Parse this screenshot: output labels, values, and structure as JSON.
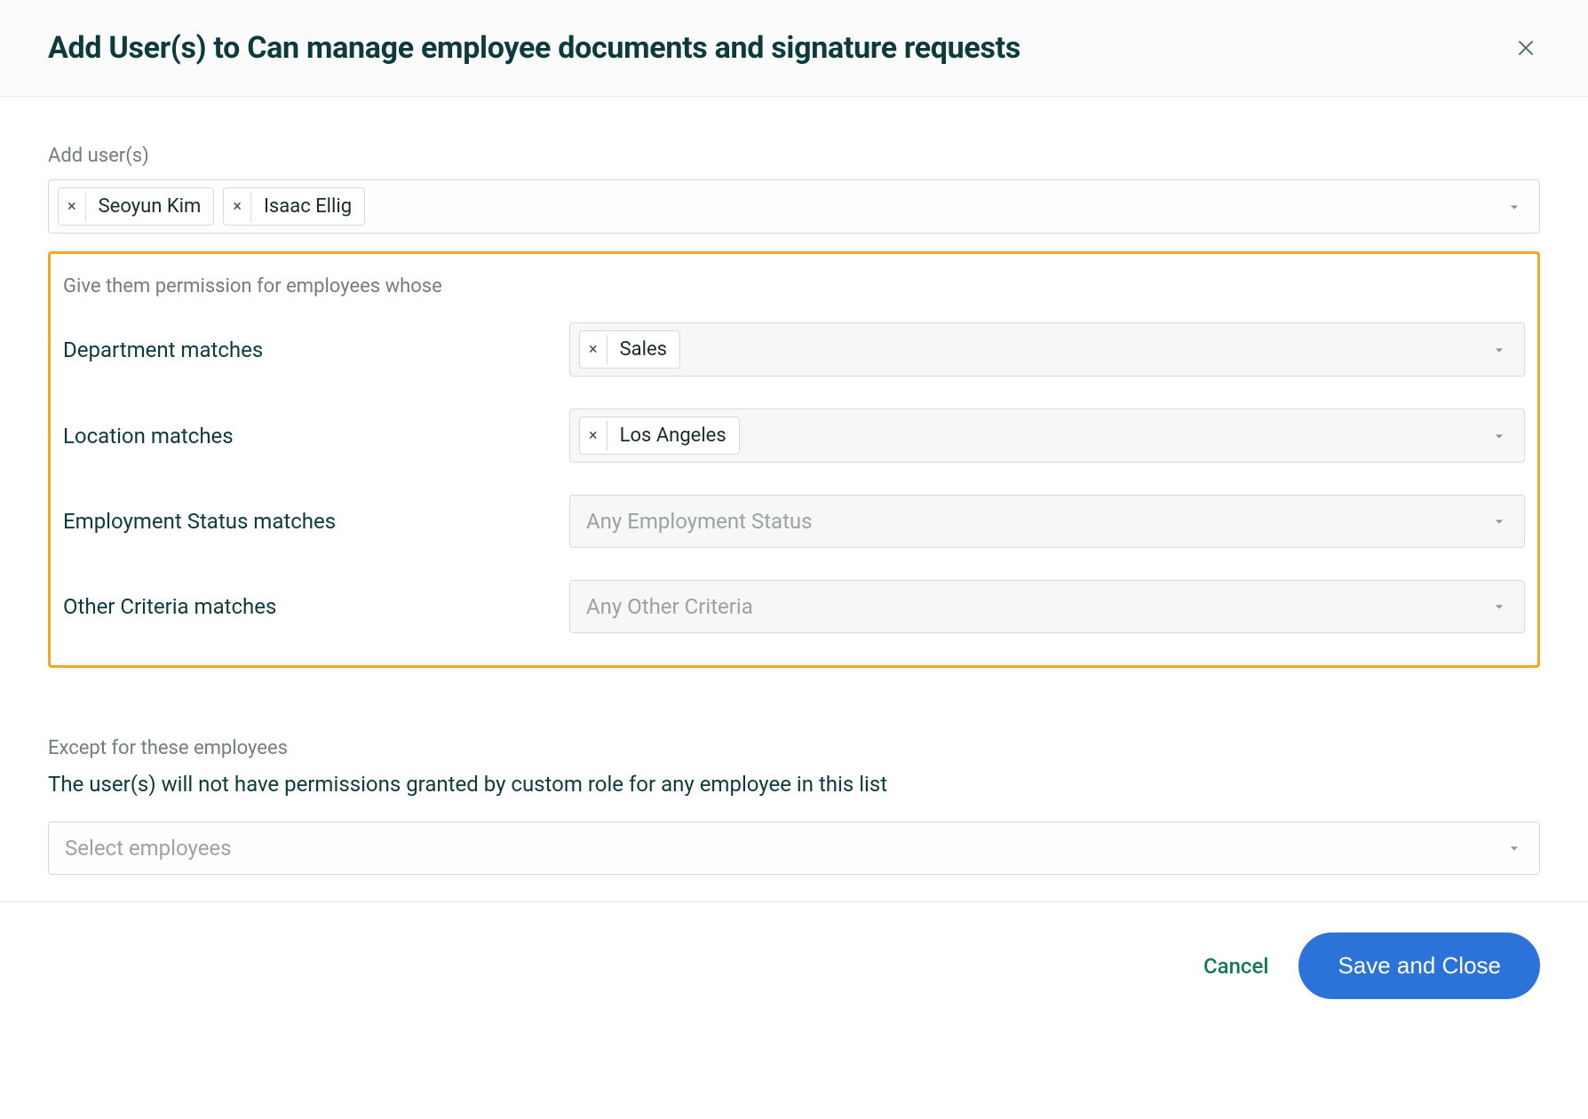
{
  "modal": {
    "title": "Add User(s) to Can manage employee documents and signature requests"
  },
  "addUsers": {
    "label": "Add user(s)",
    "chips": [
      {
        "name": "Seoyun Kim"
      },
      {
        "name": "Isaac Ellig"
      }
    ]
  },
  "permissions": {
    "sectionLabel": "Give them permission for employees whose",
    "criteria": [
      {
        "label": "Department matches",
        "type": "chips",
        "chips": [
          {
            "name": "Sales"
          }
        ],
        "placeholder": ""
      },
      {
        "label": "Location matches",
        "type": "chips",
        "chips": [
          {
            "name": "Los Angeles"
          }
        ],
        "placeholder": ""
      },
      {
        "label": "Employment Status matches",
        "type": "placeholder",
        "chips": [],
        "placeholder": "Any Employment Status"
      },
      {
        "label": "Other Criteria matches",
        "type": "placeholder",
        "chips": [],
        "placeholder": "Any Other Criteria"
      }
    ],
    "highlightColor": "#f5a623"
  },
  "except": {
    "label": "Except for these employees",
    "description": "The user(s) will not have permissions granted by custom role for any employee in this list",
    "placeholder": "Select employees"
  },
  "footer": {
    "cancel": "Cancel",
    "save": "Save and Close"
  },
  "colors": {
    "titleText": "#0d3b3b",
    "mutedText": "#737d7d",
    "border": "#d9d9d9",
    "primaryButton": "#2b73d9",
    "cancelText": "#127a52",
    "background": "#ffffff",
    "greySelectBg": "#f7f7f7"
  }
}
